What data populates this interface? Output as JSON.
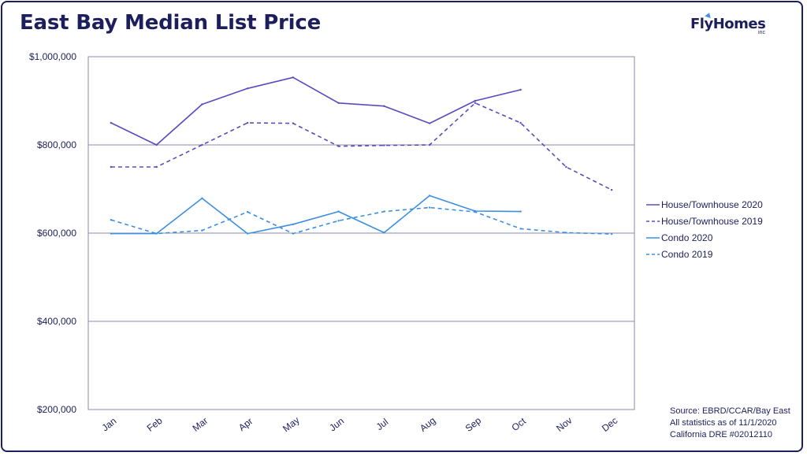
{
  "header": {
    "title": "East Bay Median List Price",
    "logo_text": "FlyHomes",
    "logo_sub": "inc"
  },
  "source": {
    "line1": "Source: EBRD/CCAR/Bay East",
    "line2": "All statistics as of 11/1/2020",
    "line3": "California DRE #02012110"
  },
  "colors": {
    "house": "#5b4bbf",
    "condo": "#3d8fe0",
    "grid": "#8a8aa8",
    "text": "#1c1f5c"
  },
  "chart_data": {
    "type": "line",
    "categories": [
      "Jan",
      "Feb",
      "Mar",
      "Apr",
      "May",
      "Jun",
      "Jul",
      "Aug",
      "Sep",
      "Oct",
      "Nov",
      "Dec"
    ],
    "ylim": [
      200000,
      1000000
    ],
    "yticks": [
      {
        "value": 200000,
        "label": "$200,000"
      },
      {
        "value": 400000,
        "label": "$400,000"
      },
      {
        "value": 600000,
        "label": "$600,000"
      },
      {
        "value": 800000,
        "label": "$800,000"
      },
      {
        "value": 1000000,
        "label": "$1,000,000"
      }
    ],
    "grid": true,
    "legend_position": "right",
    "series": [
      {
        "name": "House/Townhouse 2020",
        "color": "#5b4bbf",
        "dash": "solid",
        "values": [
          850000,
          800000,
          892000,
          928000,
          953000,
          895000,
          888000,
          849000,
          900000,
          925000,
          null,
          null
        ]
      },
      {
        "name": "House/Townhouse 2019",
        "color": "#5b4bbf",
        "dash": "dashed",
        "values": [
          750000,
          750000,
          800000,
          850000,
          849000,
          797000,
          799000,
          800000,
          895000,
          850000,
          750000,
          698000
        ]
      },
      {
        "name": "Condo 2020",
        "color": "#3d8fe0",
        "dash": "solid",
        "values": [
          599000,
          599000,
          679000,
          599000,
          620000,
          649000,
          601000,
          685000,
          650000,
          649000,
          null,
          null
        ]
      },
      {
        "name": "Condo 2019",
        "color": "#3d8fe0",
        "dash": "dashed",
        "values": [
          630000,
          599000,
          606000,
          648000,
          599000,
          628000,
          649000,
          658000,
          648000,
          610000,
          601000,
          598000
        ]
      }
    ]
  }
}
